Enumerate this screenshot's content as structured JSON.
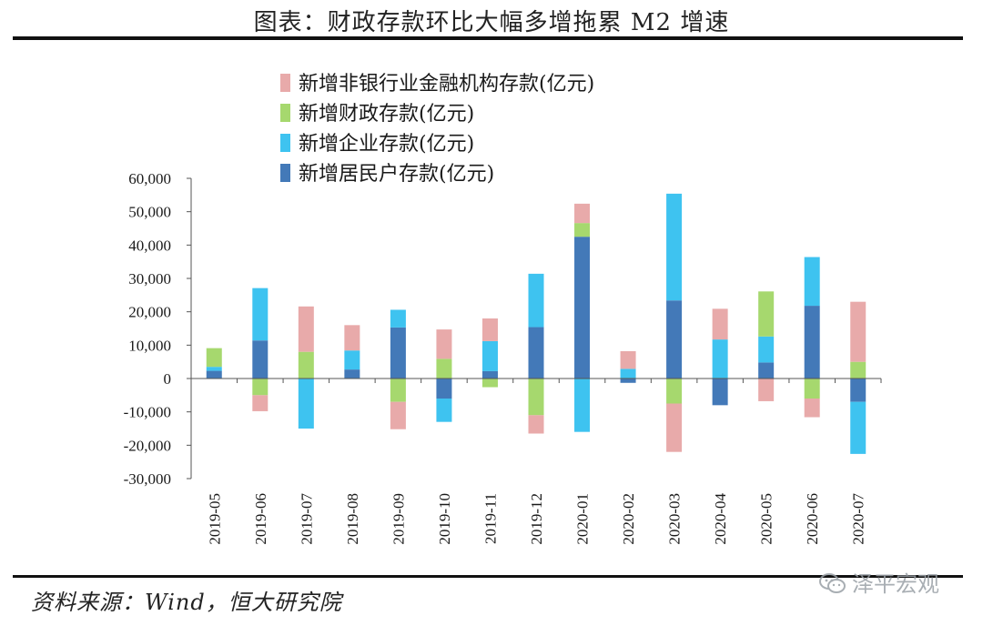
{
  "title": "图表：财政存款环比大幅多增拖累 M2 增速",
  "source": "资料来源：Wind，恒大研究院",
  "watermark": "泽平宏观",
  "colors": {
    "non_bank": "#e8aaaa",
    "fiscal": "#a6d86e",
    "enterprise": "#3ec3f0",
    "household": "#4379b8"
  },
  "chart_data": {
    "type": "bar",
    "stacked": true,
    "categories": [
      "2019-05",
      "2019-06",
      "2019-07",
      "2019-08",
      "2019-09",
      "2019-10",
      "2019-11",
      "2019-12",
      "2020-01",
      "2020-02",
      "2020-03",
      "2020-04",
      "2020-05",
      "2020-06",
      "2020-07"
    ],
    "series": [
      {
        "key": "household",
        "name": "新增居民户存款(亿元)",
        "color": "#4379b8",
        "values": [
          2300,
          11400,
          0,
          2700,
          15300,
          -6000,
          2200,
          15400,
          42500,
          -1300,
          23400,
          -8000,
          4800,
          21800,
          -7000
        ]
      },
      {
        "key": "enterprise",
        "name": "新增企业存款(亿元)",
        "color": "#3ec3f0",
        "values": [
          1200,
          15700,
          -15000,
          5700,
          5300,
          -7000,
          9000,
          16000,
          -16000,
          2900,
          32000,
          11700,
          7800,
          14600,
          -15600
        ]
      },
      {
        "key": "fiscal",
        "name": "新增财政存款(亿元)",
        "color": "#a6d86e",
        "values": [
          5600,
          -5000,
          8000,
          0,
          -7000,
          5900,
          -2600,
          -11000,
          4100,
          0,
          -7500,
          0,
          13500,
          -6000,
          5000
        ]
      },
      {
        "key": "non_bank",
        "name": "新增非银行业金融机构存款(亿元)",
        "color": "#e8aaaa",
        "values": [
          0,
          -4800,
          13600,
          7600,
          -8200,
          8800,
          6800,
          -5500,
          5800,
          5300,
          -14500,
          9200,
          -6800,
          -5600,
          18000
        ]
      }
    ],
    "legend_order": [
      "non_bank",
      "fiscal",
      "enterprise",
      "household"
    ],
    "legend_position": "top-left",
    "ylim": [
      -30000,
      60000
    ],
    "yticks": [
      "60,000",
      "50,000",
      "40,000",
      "30,000",
      "20,000",
      "10,000",
      "0",
      "-10,000",
      "-20,000",
      "-30,000"
    ],
    "ytick_values": [
      60000,
      50000,
      40000,
      30000,
      20000,
      10000,
      0,
      -10000,
      -20000,
      -30000
    ],
    "xlabel": "",
    "ylabel": ""
  }
}
